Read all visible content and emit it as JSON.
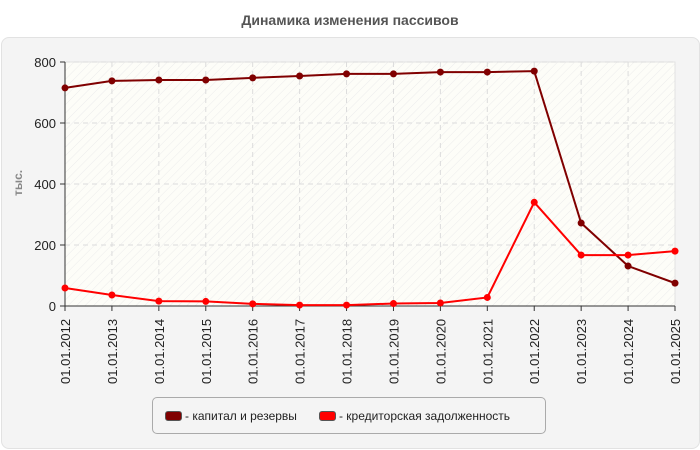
{
  "title": "Динамика изменения пассивов",
  "chart_data": {
    "type": "line",
    "title": "Динамика изменения пассивов",
    "xlabel": "",
    "ylabel": "тыс.",
    "ylim": [
      0,
      800
    ],
    "yticks": [
      0,
      200,
      400,
      600,
      800
    ],
    "grid": true,
    "legend_position": "bottom",
    "categories": [
      "01.01.2012",
      "01.01.2013",
      "01.01.2014",
      "01.01.2015",
      "01.01.2016",
      "01.01.2017",
      "01.01.2018",
      "01.01.2019",
      "01.01.2020",
      "01.01.2021",
      "01.01.2022",
      "01.01.2023",
      "01.01.2024",
      "01.01.2025"
    ],
    "series": [
      {
        "name": "капитал и резервы",
        "color": "#800000",
        "values": [
          715,
          738,
          741,
          741,
          748,
          754,
          761,
          761,
          767,
          767,
          770,
          272,
          131,
          75
        ]
      },
      {
        "name": "кредиторская задолженность",
        "color": "#ff0000",
        "values": [
          59,
          36,
          16,
          15,
          7,
          3,
          3,
          8,
          10,
          28,
          340,
          167,
          167,
          180
        ]
      }
    ]
  },
  "legend": [
    {
      "label": "- капитал и резервы",
      "color": "#800000"
    },
    {
      "label": "- кредиторская задолженность",
      "color": "#ff0000"
    }
  ]
}
